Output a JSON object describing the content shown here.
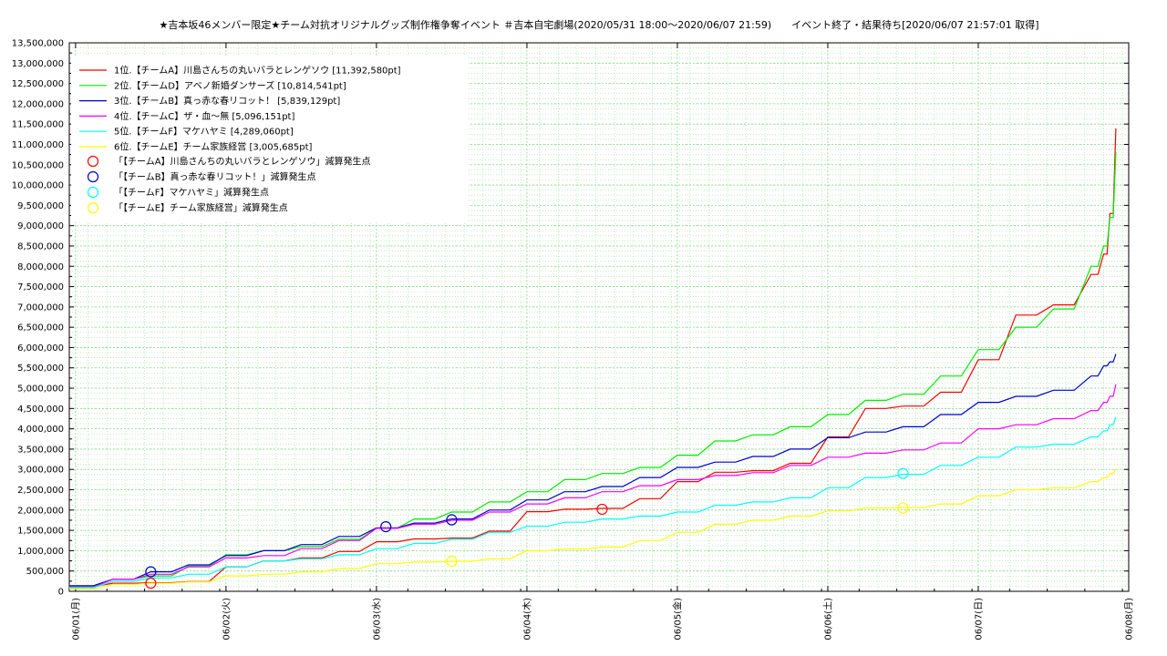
{
  "chart_data": {
    "type": "line",
    "title": "★吉本坂46メンバー限定★チーム対抗オリジナルグッズ制作権争奪イベント ＃吉本自宅劇場(2020/05/31 18:00～2020/06/07 21:59)　　イベント終了・結果待ち[2020/06/07 21:57:01 取得]",
    "xlabel": "",
    "ylabel": "",
    "x_range": [
      "2020-05-31T23:00",
      "2020-06-08T00:00"
    ],
    "ylim": [
      0,
      13500000
    ],
    "grid": true,
    "legend_position": "top-left",
    "x_ticks": [
      {
        "label": "06/01(月)",
        "t": "2020-06-01T00:00"
      },
      {
        "label": "06/02(火)",
        "t": "2020-06-02T00:00"
      },
      {
        "label": "06/03(水)",
        "t": "2020-06-03T00:00"
      },
      {
        "label": "06/04(木)",
        "t": "2020-06-04T00:00"
      },
      {
        "label": "06/05(金)",
        "t": "2020-06-05T00:00"
      },
      {
        "label": "06/06(土)",
        "t": "2020-06-06T00:00"
      },
      {
        "label": "06/07(日)",
        "t": "2020-06-07T00:00"
      },
      {
        "label": "06/08(月)",
        "t": "2020-06-08T00:00"
      }
    ],
    "y_ticks": [
      {
        "label": "0",
        "v": 0
      },
      {
        "label": "500,000",
        "v": 500000
      },
      {
        "label": "1,000,000",
        "v": 1000000
      },
      {
        "label": "1,500,000",
        "v": 1500000
      },
      {
        "label": "2,000,000",
        "v": 2000000
      },
      {
        "label": "2,500,000",
        "v": 2500000
      },
      {
        "label": "3,000,000",
        "v": 3000000
      },
      {
        "label": "3,500,000",
        "v": 3500000
      },
      {
        "label": "4,000,000",
        "v": 4000000
      },
      {
        "label": "4,500,000",
        "v": 4500000
      },
      {
        "label": "5,000,000",
        "v": 5000000
      },
      {
        "label": "5,500,000",
        "v": 5500000
      },
      {
        "label": "6,000,000",
        "v": 6000000
      },
      {
        "label": "6,500,000",
        "v": 6500000
      },
      {
        "label": "7,000,000",
        "v": 7000000
      },
      {
        "label": "7,500,000",
        "v": 7500000
      },
      {
        "label": "8,000,000",
        "v": 8000000
      },
      {
        "label": "8,500,000",
        "v": 8500000
      },
      {
        "label": "9,000,000",
        "v": 9000000
      },
      {
        "label": "9,500,000",
        "v": 9500000
      },
      {
        "label": "10,000,000",
        "v": 10000000
      },
      {
        "label": "10,500,000",
        "v": 10500000
      },
      {
        "label": "11,000,000",
        "v": 11000000
      },
      {
        "label": "11,500,000",
        "v": 11500000
      },
      {
        "label": "12,000,000",
        "v": 12000000
      },
      {
        "label": "12,500,000",
        "v": 12500000
      },
      {
        "label": "13,000,000",
        "v": 13000000
      },
      {
        "label": "13,500,000",
        "v": 13500000
      }
    ],
    "series": [
      {
        "name": "1位.【チームA】川島さんちの丸いバラとレンゲソウ [11,392,580pt]",
        "color": "#ff0000",
        "x": [
          "2020-05-31T23:00",
          "2020-06-01T06:00",
          "2020-06-01T12:00",
          "2020-06-01T18:00",
          "2020-06-02T00:00",
          "2020-06-02T06:00",
          "2020-06-02T12:00",
          "2020-06-02T18:00",
          "2020-06-03T00:00",
          "2020-06-03T06:00",
          "2020-06-03T12:00",
          "2020-06-03T18:00",
          "2020-06-04T00:00",
          "2020-06-04T06:00",
          "2020-06-04T12:00",
          "2020-06-04T18:00",
          "2020-06-05T00:00",
          "2020-06-05T06:00",
          "2020-06-05T12:00",
          "2020-06-05T18:00",
          "2020-06-06T00:00",
          "2020-06-06T06:00",
          "2020-06-06T12:00",
          "2020-06-06T18:00",
          "2020-06-07T00:00",
          "2020-06-07T06:00",
          "2020-06-07T12:00",
          "2020-06-07T18:00",
          "2020-06-07T20:00",
          "2020-06-07T21:00",
          "2020-06-07T21:57"
        ],
        "values": [
          120000,
          200000,
          210000,
          240000,
          600000,
          750000,
          820000,
          980000,
          1220000,
          1290000,
          1310000,
          1480000,
          1960000,
          2020000,
          2040000,
          2280000,
          2700000,
          2930000,
          2970000,
          3150000,
          3800000,
          4500000,
          4560000,
          4900000,
          5700000,
          6800000,
          7050000,
          7800000,
          8300000,
          9300000,
          11392580
        ]
      },
      {
        "name": "2位.【チームD】アベノ新婚ダンサーズ [10,814,541pt]",
        "color": "#00ee00",
        "x": [
          "2020-05-31T23:00",
          "2020-06-01T06:00",
          "2020-06-01T12:00",
          "2020-06-01T18:00",
          "2020-06-02T00:00",
          "2020-06-02T06:00",
          "2020-06-02T12:00",
          "2020-06-02T18:00",
          "2020-06-03T00:00",
          "2020-06-03T06:00",
          "2020-06-03T12:00",
          "2020-06-03T18:00",
          "2020-06-04T00:00",
          "2020-06-04T06:00",
          "2020-06-04T12:00",
          "2020-06-04T18:00",
          "2020-06-05T00:00",
          "2020-06-05T06:00",
          "2020-06-05T12:00",
          "2020-06-05T18:00",
          "2020-06-06T00:00",
          "2020-06-06T06:00",
          "2020-06-06T12:00",
          "2020-06-06T18:00",
          "2020-06-07T00:00",
          "2020-06-07T06:00",
          "2020-06-07T12:00",
          "2020-06-07T18:00",
          "2020-06-07T20:00",
          "2020-06-07T21:00",
          "2020-06-07T21:57"
        ],
        "values": [
          130000,
          300000,
          380000,
          620000,
          900000,
          1000000,
          1100000,
          1280000,
          1550000,
          1780000,
          1950000,
          2200000,
          2450000,
          2750000,
          2900000,
          3050000,
          3350000,
          3700000,
          3850000,
          4050000,
          4350000,
          4700000,
          4850000,
          5300000,
          5950000,
          6500000,
          6950000,
          8000000,
          8500000,
          9200000,
          10814541
        ]
      },
      {
        "name": "3位.【チームB】真っ赤な春リコット！ [5,839,129pt]",
        "color": "#0000cc",
        "x": [
          "2020-05-31T23:00",
          "2020-06-01T06:00",
          "2020-06-01T12:00",
          "2020-06-01T18:00",
          "2020-06-02T00:00",
          "2020-06-02T06:00",
          "2020-06-02T12:00",
          "2020-06-02T18:00",
          "2020-06-03T00:00",
          "2020-06-03T06:00",
          "2020-06-03T12:00",
          "2020-06-03T18:00",
          "2020-06-04T00:00",
          "2020-06-04T06:00",
          "2020-06-04T12:00",
          "2020-06-04T18:00",
          "2020-06-05T00:00",
          "2020-06-05T06:00",
          "2020-06-05T12:00",
          "2020-06-05T18:00",
          "2020-06-06T00:00",
          "2020-06-06T06:00",
          "2020-06-06T12:00",
          "2020-06-06T18:00",
          "2020-06-07T00:00",
          "2020-06-07T06:00",
          "2020-06-07T12:00",
          "2020-06-07T18:00",
          "2020-06-07T20:00",
          "2020-06-07T21:00",
          "2020-06-07T21:57"
        ],
        "values": [
          140000,
          300000,
          480000,
          650000,
          880000,
          1000000,
          1150000,
          1350000,
          1560000,
          1680000,
          1780000,
          2000000,
          2250000,
          2450000,
          2580000,
          2800000,
          3050000,
          3180000,
          3320000,
          3500000,
          3780000,
          3920000,
          4050000,
          4350000,
          4650000,
          4800000,
          4950000,
          5300000,
          5550000,
          5650000,
          5839129
        ]
      },
      {
        "name": "4位.【チームC】ザ・血～無 [5,096,151pt]",
        "color": "#ff00ff",
        "x": [
          "2020-05-31T23:00",
          "2020-06-01T06:00",
          "2020-06-01T12:00",
          "2020-06-01T18:00",
          "2020-06-02T00:00",
          "2020-06-02T06:00",
          "2020-06-02T12:00",
          "2020-06-02T18:00",
          "2020-06-03T00:00",
          "2020-06-03T06:00",
          "2020-06-03T12:00",
          "2020-06-03T18:00",
          "2020-06-04T00:00",
          "2020-06-04T06:00",
          "2020-06-04T12:00",
          "2020-06-04T18:00",
          "2020-06-05T00:00",
          "2020-06-05T06:00",
          "2020-06-05T12:00",
          "2020-06-05T18:00",
          "2020-06-06T00:00",
          "2020-06-06T06:00",
          "2020-06-06T12:00",
          "2020-06-06T18:00",
          "2020-06-07T00:00",
          "2020-06-07T06:00",
          "2020-06-07T12:00",
          "2020-06-07T18:00",
          "2020-06-07T20:00",
          "2020-06-07T21:00",
          "2020-06-07T21:57"
        ],
        "values": [
          100000,
          300000,
          420000,
          600000,
          820000,
          880000,
          1050000,
          1250000,
          1550000,
          1650000,
          1750000,
          1950000,
          2150000,
          2300000,
          2450000,
          2600000,
          2750000,
          2850000,
          2920000,
          3100000,
          3300000,
          3400000,
          3480000,
          3650000,
          4000000,
          4100000,
          4250000,
          4450000,
          4650000,
          4800000,
          5096151
        ]
      },
      {
        "name": "5位.【チームF】マケハヤミ [4,289,060pt]",
        "color": "#00ffff",
        "x": [
          "2020-05-31T23:00",
          "2020-06-01T06:00",
          "2020-06-01T12:00",
          "2020-06-01T18:00",
          "2020-06-02T00:00",
          "2020-06-02T06:00",
          "2020-06-02T12:00",
          "2020-06-02T18:00",
          "2020-06-03T00:00",
          "2020-06-03T06:00",
          "2020-06-03T12:00",
          "2020-06-03T18:00",
          "2020-06-04T00:00",
          "2020-06-04T06:00",
          "2020-06-04T12:00",
          "2020-06-04T18:00",
          "2020-06-05T00:00",
          "2020-06-05T06:00",
          "2020-06-05T12:00",
          "2020-06-05T18:00",
          "2020-06-06T00:00",
          "2020-06-06T06:00",
          "2020-06-06T12:00",
          "2020-06-06T18:00",
          "2020-06-07T00:00",
          "2020-06-07T06:00",
          "2020-06-07T12:00",
          "2020-06-07T18:00",
          "2020-06-07T20:00",
          "2020-06-07T21:00",
          "2020-06-07T21:57"
        ],
        "values": [
          90000,
          250000,
          330000,
          420000,
          600000,
          750000,
          800000,
          900000,
          1050000,
          1180000,
          1280000,
          1450000,
          1600000,
          1700000,
          1780000,
          1850000,
          1950000,
          2120000,
          2200000,
          2300000,
          2550000,
          2800000,
          2880000,
          3100000,
          3300000,
          3550000,
          3620000,
          3800000,
          3950000,
          4100000,
          4289060
        ]
      },
      {
        "name": "6位.【チームE】チーム家族経営 [3,005,685pt]",
        "color": "#ffff00",
        "x": [
          "2020-05-31T23:00",
          "2020-06-01T06:00",
          "2020-06-01T12:00",
          "2020-06-01T18:00",
          "2020-06-02T00:00",
          "2020-06-02T06:00",
          "2020-06-02T12:00",
          "2020-06-02T18:00",
          "2020-06-03T00:00",
          "2020-06-03T06:00",
          "2020-06-03T12:00",
          "2020-06-03T18:00",
          "2020-06-04T00:00",
          "2020-06-04T06:00",
          "2020-06-04T12:00",
          "2020-06-04T18:00",
          "2020-06-05T00:00",
          "2020-06-05T06:00",
          "2020-06-05T12:00",
          "2020-06-05T18:00",
          "2020-06-06T00:00",
          "2020-06-06T06:00",
          "2020-06-06T12:00",
          "2020-06-06T18:00",
          "2020-06-07T00:00",
          "2020-06-07T06:00",
          "2020-06-07T12:00",
          "2020-06-07T18:00",
          "2020-06-07T20:00",
          "2020-06-07T21:00",
          "2020-06-07T21:57"
        ],
        "values": [
          60000,
          170000,
          200000,
          230000,
          380000,
          420000,
          480000,
          560000,
          680000,
          720000,
          740000,
          800000,
          1000000,
          1040000,
          1090000,
          1250000,
          1450000,
          1650000,
          1750000,
          1850000,
          1980000,
          2050000,
          2060000,
          2150000,
          2350000,
          2500000,
          2550000,
          2700000,
          2800000,
          2900000,
          3005685
        ]
      }
    ],
    "markers": [
      {
        "name": "「【チームA】川島さんちの丸いバラとレンゲソウ」減算発生点",
        "color": "#ff0000",
        "points": [
          {
            "x": "2020-06-01T12:00",
            "y": 200000
          },
          {
            "x": "2020-06-04T12:00",
            "y": 2020000
          }
        ]
      },
      {
        "name": "「【チームB】真っ赤な春リコット！」減算発生点",
        "color": "#0000cc",
        "points": [
          {
            "x": "2020-06-01T12:00",
            "y": 480000
          },
          {
            "x": "2020-06-03T01:30",
            "y": 1590000
          },
          {
            "x": "2020-06-03T12:00",
            "y": 1760000
          }
        ]
      },
      {
        "name": "「【チームF】マケハヤミ」減算発生点",
        "color": "#00ffff",
        "points": [
          {
            "x": "2020-06-06T12:00",
            "y": 2900000
          }
        ]
      },
      {
        "name": "「【チームE】チーム家族経営」減算発生点",
        "color": "#ffff00",
        "points": [
          {
            "x": "2020-06-03T12:00",
            "y": 740000
          },
          {
            "x": "2020-06-06T12:00",
            "y": 2050000
          }
        ]
      }
    ]
  }
}
